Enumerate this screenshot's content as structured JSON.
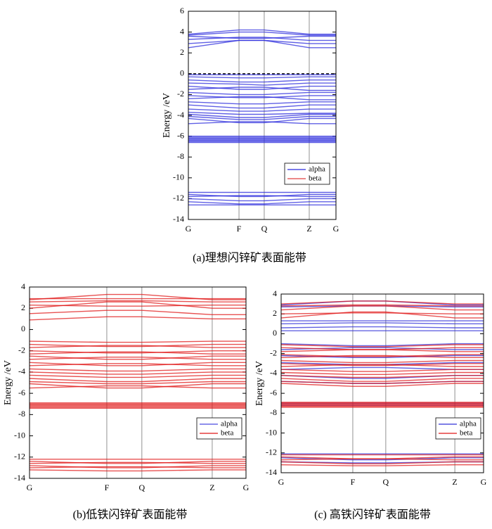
{
  "chart_data": [
    {
      "type": "line",
      "caption": "(a)理想闪锌矿表面能带",
      "y_label": "Energy /eV",
      "ylim": [
        -14,
        6
      ],
      "yticks": [
        -14,
        -12,
        -10,
        -8,
        -6,
        -4,
        -2,
        0,
        2,
        4,
        6
      ],
      "xlim": [
        0,
        1
      ],
      "xticks": [
        {
          "value": 0,
          "label": "G"
        },
        {
          "value": 0.343,
          "label": "F"
        },
        {
          "value": 0.514,
          "label": "Q"
        },
        {
          "value": 0.819,
          "label": "Z"
        },
        {
          "value": 1,
          "label": "G"
        }
      ],
      "x": [
        0,
        0.343,
        0.514,
        0.819,
        1
      ],
      "fermi_level": 0,
      "series": [
        {
          "name": "alpha",
          "color": "#2b2bdc",
          "bands": [
            [
              3.8,
              4.2,
              4.2,
              3.8,
              3.8
            ],
            [
              3.7,
              4.0,
              4.0,
              3.7,
              3.7
            ],
            [
              3.6,
              3.4,
              3.4,
              3.6,
              3.6
            ],
            [
              3.3,
              3.5,
              3.5,
              3.2,
              3.2
            ],
            [
              2.9,
              3.2,
              3.2,
              2.9,
              2.9
            ],
            [
              2.5,
              3.2,
              3.2,
              2.5,
              2.5
            ],
            [
              -0.1,
              -0.1,
              -0.1,
              -0.1,
              -0.1
            ],
            [
              -0.3,
              -0.4,
              -0.4,
              -0.3,
              -0.3
            ],
            [
              -0.6,
              -0.8,
              -0.8,
              -0.6,
              -0.6
            ],
            [
              -0.9,
              -1.0,
              -1.1,
              -0.9,
              -0.9
            ],
            [
              -1.2,
              -1.5,
              -1.5,
              -1.2,
              -1.2
            ],
            [
              -1.5,
              -1.3,
              -1.3,
              -1.6,
              -1.6
            ],
            [
              -1.8,
              -2.0,
              -2.0,
              -1.8,
              -1.8
            ],
            [
              -2.1,
              -2.3,
              -2.3,
              -2.1,
              -2.1
            ],
            [
              -2.4,
              -2.2,
              -2.2,
              -2.5,
              -2.5
            ],
            [
              -2.7,
              -2.9,
              -2.9,
              -2.7,
              -2.7
            ],
            [
              -3.0,
              -3.3,
              -3.3,
              -3.0,
              -3.0
            ],
            [
              -3.4,
              -3.6,
              -3.6,
              -3.4,
              -3.4
            ],
            [
              -3.7,
              -3.9,
              -3.9,
              -3.8,
              -3.8
            ],
            [
              -3.9,
              -4.2,
              -4.2,
              -3.9,
              -3.9
            ],
            [
              -4.1,
              -4.4,
              -4.4,
              -4.1,
              -4.1
            ],
            [
              -4.3,
              -4.7,
              -4.7,
              -4.3,
              -4.3
            ],
            [
              -4.8,
              -4.6,
              -4.6,
              -4.8,
              -4.8
            ],
            [
              -6.0,
              -6.0,
              -6.0,
              -6.0,
              -6.0
            ],
            [
              -6.1,
              -6.1,
              -6.1,
              -6.1,
              -6.1
            ],
            [
              -6.2,
              -6.2,
              -6.2,
              -6.2,
              -6.2
            ],
            [
              -6.3,
              -6.3,
              -6.3,
              -6.3,
              -6.3
            ],
            [
              -6.4,
              -6.4,
              -6.4,
              -6.4,
              -6.4
            ],
            [
              -6.5,
              -6.5,
              -6.5,
              -6.5,
              -6.5
            ],
            [
              -6.6,
              -6.6,
              -6.6,
              -6.6,
              -6.6
            ],
            [
              -11.4,
              -11.4,
              -11.4,
              -11.4,
              -11.4
            ],
            [
              -11.6,
              -11.8,
              -11.8,
              -11.6,
              -11.6
            ],
            [
              -11.8,
              -11.7,
              -11.7,
              -11.8,
              -11.8
            ],
            [
              -12.0,
              -12.2,
              -12.2,
              -12.0,
              -12.0
            ],
            [
              -12.3,
              -12.5,
              -12.5,
              -12.3,
              -12.3
            ],
            [
              -12.6,
              -12.6,
              -12.6,
              -12.6,
              -12.6
            ]
          ]
        },
        {
          "name": "beta",
          "color": "#e04040"
        }
      ]
    },
    {
      "type": "line",
      "caption": "(b)低铁闪锌矿表面能带",
      "y_label": "Energy /eV",
      "ylim": [
        -14,
        4
      ],
      "yticks": [
        -14,
        -12,
        -10,
        -8,
        -6,
        -4,
        -2,
        0,
        2,
        4
      ],
      "xlim": [
        0,
        1
      ],
      "xticks": [
        {
          "value": 0,
          "label": "G"
        },
        {
          "value": 0.357,
          "label": "F"
        },
        {
          "value": 0.519,
          "label": "Q"
        },
        {
          "value": 0.844,
          "label": "Z"
        },
        {
          "value": 1,
          "label": "G"
        }
      ],
      "x": [
        0,
        0.357,
        0.519,
        0.844,
        1
      ],
      "series": [
        {
          "name": "alpha",
          "color": "#4a4ae0"
        },
        {
          "name": "beta",
          "color": "#e01818",
          "bands": [
            [
              2.9,
              2.9,
              2.9,
              2.9,
              2.9
            ],
            [
              2.8,
              3.3,
              3.3,
              2.8,
              2.8
            ],
            [
              2.6,
              2.7,
              2.7,
              2.6,
              2.6
            ],
            [
              2.3,
              2.2,
              2.2,
              2.3,
              2.3
            ],
            [
              2.0,
              2.6,
              2.6,
              2.0,
              2.0
            ],
            [
              1.5,
              1.8,
              1.8,
              1.4,
              1.4
            ],
            [
              0.9,
              1.2,
              1.2,
              1.0,
              1.0
            ],
            [
              -1.1,
              -1.2,
              -1.2,
              -1.1,
              -1.1
            ],
            [
              -1.4,
              -1.6,
              -1.6,
              -1.4,
              -1.4
            ],
            [
              -1.7,
              -1.5,
              -1.5,
              -1.7,
              -1.7
            ],
            [
              -2.0,
              -2.2,
              -2.2,
              -2.0,
              -2.0
            ],
            [
              -2.3,
              -2.1,
              -2.1,
              -2.3,
              -2.3
            ],
            [
              -2.5,
              -2.8,
              -2.8,
              -2.5,
              -2.5
            ],
            [
              -2.8,
              -2.6,
              -2.6,
              -2.8,
              -2.8
            ],
            [
              -3.1,
              -3.4,
              -3.4,
              -3.1,
              -3.1
            ],
            [
              -3.4,
              -3.2,
              -3.2,
              -3.4,
              -3.4
            ],
            [
              -3.7,
              -3.9,
              -3.9,
              -3.7,
              -3.7
            ],
            [
              -4.0,
              -4.2,
              -4.2,
              -4.0,
              -4.0
            ],
            [
              -4.3,
              -4.5,
              -4.5,
              -4.3,
              -4.3
            ],
            [
              -4.6,
              -4.9,
              -4.9,
              -4.6,
              -4.6
            ],
            [
              -4.9,
              -5.1,
              -5.1,
              -4.9,
              -4.9
            ],
            [
              -5.1,
              -5.5,
              -5.5,
              -5.1,
              -5.1
            ],
            [
              -5.5,
              -5.3,
              -5.3,
              -5.5,
              -5.5
            ],
            [
              -6.9,
              -6.9,
              -6.9,
              -6.9,
              -6.9
            ],
            [
              -7.0,
              -7.0,
              -7.0,
              -7.0,
              -7.0
            ],
            [
              -7.1,
              -7.1,
              -7.1,
              -7.1,
              -7.1
            ],
            [
              -7.2,
              -7.2,
              -7.2,
              -7.2,
              -7.2
            ],
            [
              -7.3,
              -7.3,
              -7.3,
              -7.3,
              -7.3
            ],
            [
              -7.4,
              -7.4,
              -7.4,
              -7.4,
              -7.4
            ],
            [
              -12.2,
              -12.2,
              -12.2,
              -12.2,
              -12.2
            ],
            [
              -12.4,
              -12.6,
              -12.6,
              -12.4,
              -12.4
            ],
            [
              -12.6,
              -12.5,
              -12.5,
              -12.6,
              -12.6
            ],
            [
              -12.8,
              -13.0,
              -13.0,
              -12.8,
              -12.8
            ],
            [
              -13.0,
              -12.9,
              -12.9,
              -13.0,
              -13.0
            ],
            [
              -13.2,
              -13.3,
              -13.3,
              -13.2,
              -13.2
            ]
          ]
        }
      ]
    },
    {
      "type": "line",
      "caption": "(c) 高铁闪锌矿表面能带",
      "y_label": "Energy /eV",
      "ylim": [
        -14,
        4
      ],
      "yticks": [
        -14,
        -12,
        -10,
        -8,
        -6,
        -4,
        -2,
        0,
        2,
        4
      ],
      "xlim": [
        0,
        1
      ],
      "xticks": [
        {
          "value": 0,
          "label": "G"
        },
        {
          "value": 0.354,
          "label": "F"
        },
        {
          "value": 0.517,
          "label": "Q"
        },
        {
          "value": 0.858,
          "label": "Z"
        },
        {
          "value": 1,
          "label": "G"
        }
      ],
      "x": [
        0,
        0.354,
        0.517,
        0.858,
        1
      ],
      "series": [
        {
          "name": "alpha",
          "color": "#3030d8",
          "bands": [
            [
              2.9,
              3.3,
              3.3,
              2.9,
              2.9
            ],
            [
              2.7,
              2.8,
              2.8,
              2.7,
              2.7
            ],
            [
              1.3,
              1.3,
              1.3,
              1.3,
              1.3
            ],
            [
              1.0,
              1.1,
              1.1,
              1.0,
              1.0
            ],
            [
              0.6,
              0.7,
              0.7,
              0.6,
              0.6
            ],
            [
              0.3,
              0.3,
              0.3,
              0.3,
              0.3
            ],
            [
              -1.0,
              -1.2,
              -1.2,
              -1.0,
              -1.0
            ],
            [
              -1.6,
              -1.4,
              -1.4,
              -1.6,
              -1.6
            ],
            [
              -2.2,
              -2.4,
              -2.4,
              -2.2,
              -2.2
            ],
            [
              -2.9,
              -3.1,
              -3.1,
              -2.9,
              -2.9
            ],
            [
              -3.6,
              -3.4,
              -3.4,
              -3.6,
              -3.6
            ],
            [
              -4.2,
              -4.5,
              -4.5,
              -4.2,
              -4.2
            ],
            [
              -4.8,
              -5.0,
              -5.0,
              -4.8,
              -4.8
            ],
            [
              -7.0,
              -7.0,
              -7.0,
              -7.0,
              -7.0
            ],
            [
              -7.2,
              -7.2,
              -7.2,
              -7.2,
              -7.2
            ],
            [
              -12.1,
              -12.1,
              -12.1,
              -12.1,
              -12.1
            ],
            [
              -12.5,
              -12.7,
              -12.7,
              -12.5,
              -12.5
            ],
            [
              -12.9,
              -13.0,
              -13.0,
              -12.9,
              -12.9
            ]
          ]
        },
        {
          "name": "beta",
          "color": "#e01818",
          "bands": [
            [
              3.0,
              3.3,
              3.3,
              3.0,
              3.0
            ],
            [
              2.8,
              2.9,
              2.9,
              2.8,
              2.8
            ],
            [
              2.4,
              2.8,
              2.8,
              2.4,
              2.4
            ],
            [
              2.0,
              2.1,
              2.1,
              2.0,
              2.0
            ],
            [
              1.6,
              2.2,
              2.2,
              1.6,
              1.6
            ],
            [
              -1.1,
              -1.3,
              -1.3,
              -1.1,
              -1.1
            ],
            [
              -1.4,
              -1.6,
              -1.6,
              -1.4,
              -1.4
            ],
            [
              -1.8,
              -1.6,
              -1.6,
              -1.8,
              -1.8
            ],
            [
              -2.1,
              -2.3,
              -2.3,
              -2.1,
              -2.1
            ],
            [
              -2.4,
              -2.2,
              -2.2,
              -2.4,
              -2.4
            ],
            [
              -2.7,
              -2.9,
              -2.9,
              -2.7,
              -2.7
            ],
            [
              -3.0,
              -3.2,
              -3.2,
              -3.0,
              -3.0
            ],
            [
              -3.3,
              -3.1,
              -3.1,
              -3.3,
              -3.3
            ],
            [
              -3.6,
              -3.8,
              -3.8,
              -3.6,
              -3.6
            ],
            [
              -3.9,
              -4.1,
              -4.1,
              -3.9,
              -3.9
            ],
            [
              -4.2,
              -4.4,
              -4.4,
              -4.2,
              -4.2
            ],
            [
              -4.5,
              -4.8,
              -4.8,
              -4.5,
              -4.5
            ],
            [
              -4.8,
              -5.0,
              -5.0,
              -4.8,
              -4.8
            ],
            [
              -5.0,
              -5.3,
              -5.3,
              -5.0,
              -5.0
            ],
            [
              -6.9,
              -6.9,
              -6.9,
              -6.9,
              -6.9
            ],
            [
              -7.0,
              -7.0,
              -7.0,
              -7.0,
              -7.0
            ],
            [
              -7.1,
              -7.1,
              -7.1,
              -7.1,
              -7.1
            ],
            [
              -7.2,
              -7.2,
              -7.2,
              -7.2,
              -7.2
            ],
            [
              -7.3,
              -7.3,
              -7.3,
              -7.3,
              -7.3
            ],
            [
              -7.4,
              -7.4,
              -7.4,
              -7.4,
              -7.4
            ],
            [
              -12.2,
              -12.2,
              -12.2,
              -12.2,
              -12.2
            ],
            [
              -12.4,
              -12.6,
              -12.6,
              -12.4,
              -12.4
            ],
            [
              -12.7,
              -12.6,
              -12.6,
              -12.7,
              -12.7
            ],
            [
              -12.9,
              -13.1,
              -13.1,
              -12.9,
              -12.9
            ],
            [
              -13.2,
              -13.3,
              -13.3,
              -13.2,
              -13.2
            ]
          ]
        }
      ]
    }
  ]
}
